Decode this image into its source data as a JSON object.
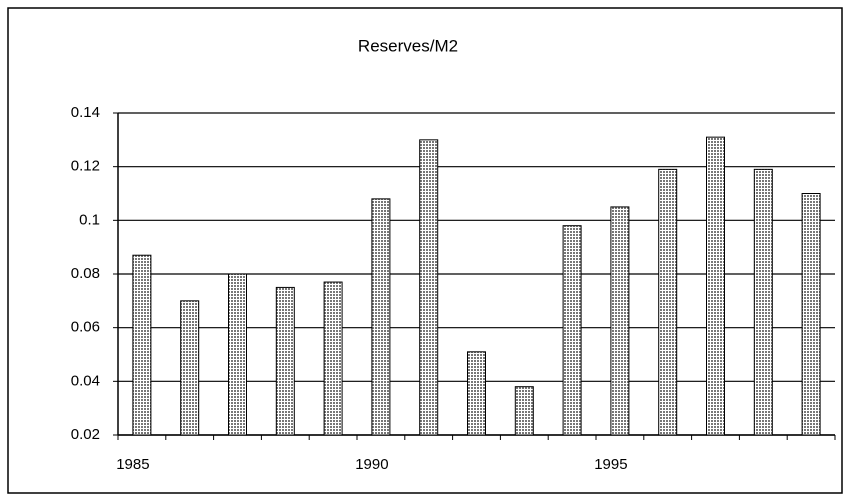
{
  "chart_data": {
    "type": "bar",
    "title": "Reserves/M2",
    "categories": [
      "1985",
      null,
      null,
      null,
      null,
      "1990",
      null,
      null,
      null,
      null,
      "1995",
      null,
      null,
      null,
      null
    ],
    "values": [
      0.087,
      0.07,
      0.08,
      0.075,
      0.077,
      0.108,
      0.13,
      0.051,
      0.038,
      0.098,
      0.105,
      0.119,
      0.131,
      0.119,
      0.11
    ],
    "color": "#b4b4b4",
    "ylim": [
      0.02,
      0.14
    ],
    "yticks": [
      0.02,
      0.04,
      0.06,
      0.08,
      0.1,
      0.12,
      0.14
    ],
    "grid": true
  }
}
